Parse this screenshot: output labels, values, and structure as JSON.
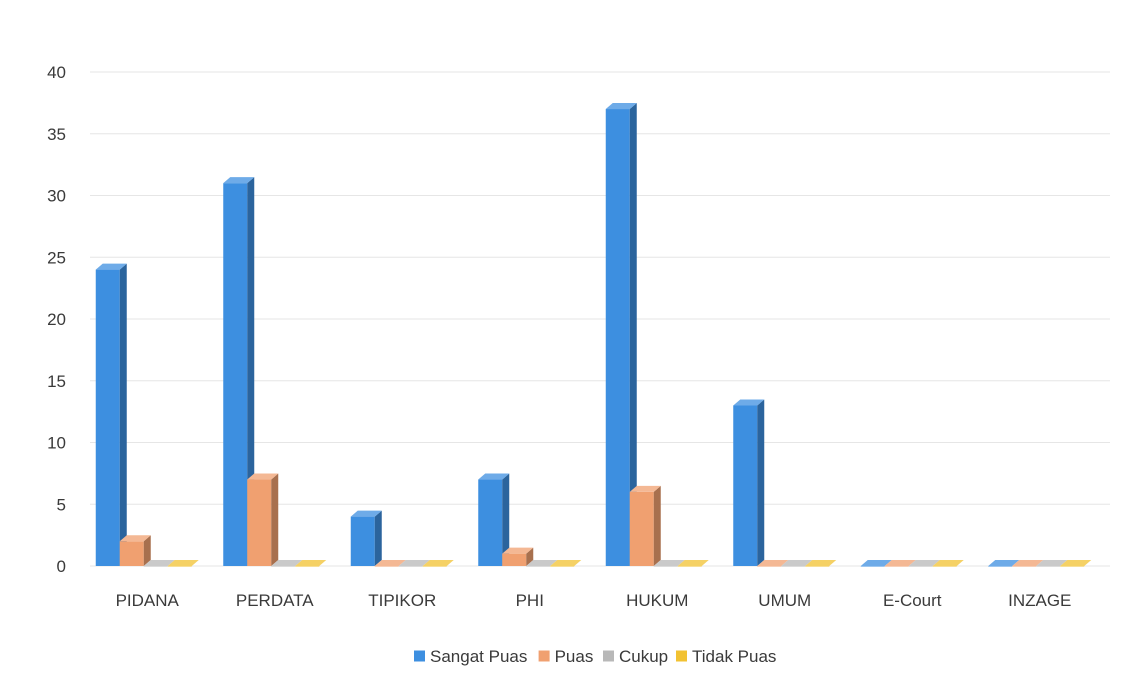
{
  "chart_data": {
    "type": "bar",
    "title": "",
    "xlabel": "",
    "ylabel": "",
    "ylim": [
      0,
      40
    ],
    "yticks": [
      0,
      5,
      10,
      15,
      20,
      25,
      30,
      35,
      40
    ],
    "grid": true,
    "legend_position": "bottom",
    "categories": [
      "PIDANA",
      "PERDATA",
      "TIPIKOR",
      "PHI",
      "HUKUM",
      "UMUM",
      "E-Court",
      "INZAGE"
    ],
    "series": [
      {
        "name": "Sangat Puas",
        "color": "#3d8fe0",
        "values": [
          24,
          31,
          4,
          7,
          37,
          13,
          0,
          0
        ]
      },
      {
        "name": "Puas",
        "color": "#f0a070",
        "values": [
          2,
          7,
          0,
          1,
          6,
          0,
          0,
          0
        ]
      },
      {
        "name": "Cukup",
        "color": "#b8b8b8",
        "values": [
          0,
          0,
          0,
          0,
          0,
          0,
          0,
          0
        ]
      },
      {
        "name": "Tidak Puas",
        "color": "#f2c232",
        "values": [
          0,
          0,
          0,
          0,
          0,
          0,
          0,
          0
        ]
      }
    ]
  }
}
